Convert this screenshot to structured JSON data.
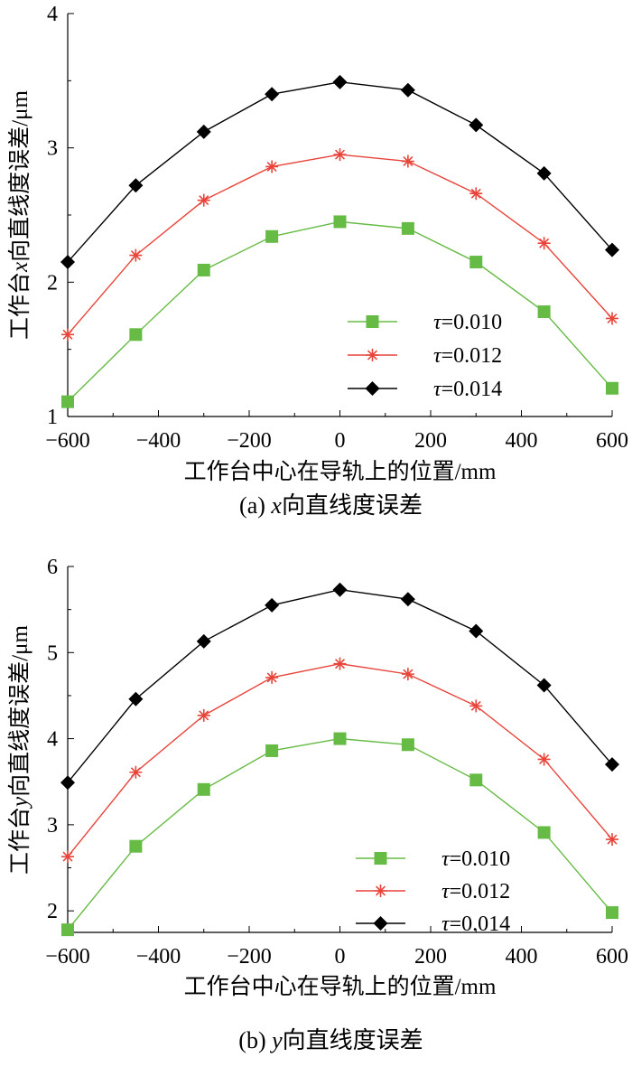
{
  "chart_data": [
    {
      "type": "line",
      "caption_label": "(a)",
      "caption_var": "x",
      "caption_text": "向直线度误差",
      "xlabel": "工作台中心在导轨上的位置/mm",
      "ylabel_prefix": "工作台",
      "ylabel_var": "x",
      "ylabel_suffix": "向直线度误差/μm",
      "xlim": [
        -600,
        600
      ],
      "ylim": [
        1,
        4
      ],
      "xticks": [
        -600,
        -400,
        -200,
        0,
        200,
        400,
        600
      ],
      "yticks": [
        1,
        2,
        3,
        4
      ],
      "x": [
        -600,
        -450,
        -300,
        -150,
        0,
        150,
        300,
        450,
        600
      ],
      "legend_position": "lower-right",
      "series": [
        {
          "name": "τ=0.010",
          "marker": "square",
          "color": "#66BB44",
          "values": [
            1.11,
            1.61,
            2.09,
            2.34,
            2.45,
            2.4,
            2.15,
            1.78,
            1.21
          ]
        },
        {
          "name": "τ=0.012",
          "marker": "asterisk",
          "color": "#E8443A",
          "values": [
            1.61,
            2.2,
            2.61,
            2.86,
            2.95,
            2.9,
            2.66,
            2.29,
            1.73
          ]
        },
        {
          "name": "τ=0.014",
          "marker": "diamond",
          "color": "#000000",
          "values": [
            2.15,
            2.72,
            3.12,
            3.4,
            3.49,
            3.43,
            3.17,
            2.81,
            2.24
          ]
        }
      ]
    },
    {
      "type": "line",
      "caption_label": "(b)",
      "caption_var": "y",
      "caption_text": "向直线度误差",
      "xlabel": "工作台中心在导轨上的位置/mm",
      "ylabel_prefix": "工作台",
      "ylabel_var": "y",
      "ylabel_suffix": "向直线度误差/μm",
      "xlim": [
        -600,
        600
      ],
      "ylim": [
        1.75,
        6
      ],
      "xticks": [
        -600,
        -400,
        -200,
        0,
        200,
        400,
        600
      ],
      "yticks": [
        2,
        3,
        4,
        5,
        6
      ],
      "x": [
        -600,
        -450,
        -300,
        -150,
        0,
        150,
        300,
        450,
        600
      ],
      "legend_position": "lower-right",
      "series": [
        {
          "name": "τ=0.010",
          "marker": "square",
          "color": "#66BB44",
          "values": [
            1.78,
            2.75,
            3.41,
            3.86,
            4.0,
            3.93,
            3.52,
            2.91,
            1.98
          ]
        },
        {
          "name": "τ=0.012",
          "marker": "asterisk",
          "color": "#E8443A",
          "values": [
            2.63,
            3.61,
            4.27,
            4.71,
            4.87,
            4.75,
            4.38,
            3.76,
            2.83
          ]
        },
        {
          "name": "τ=0.014",
          "marker": "diamond",
          "color": "#000000",
          "values": [
            3.49,
            4.46,
            5.13,
            5.55,
            5.73,
            5.62,
            5.25,
            4.62,
            3.7
          ]
        }
      ]
    }
  ]
}
